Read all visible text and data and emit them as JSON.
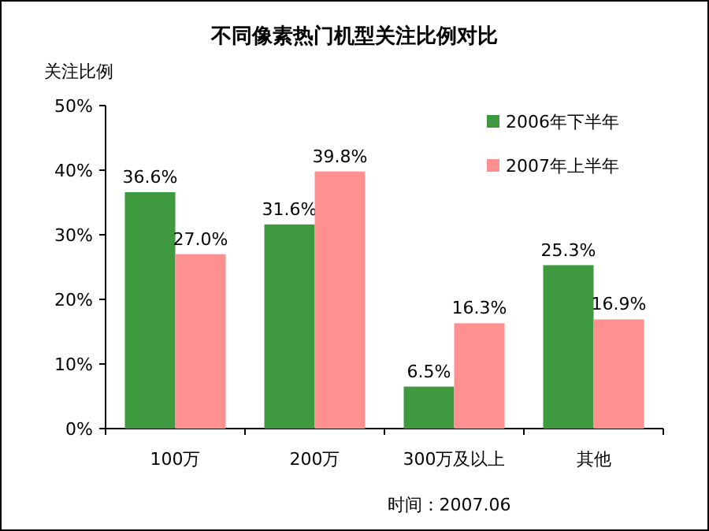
{
  "chart_data": {
    "type": "bar",
    "title": "不同像素热门机型关注比例对比",
    "ylabel": "关注比例",
    "categories": [
      "100万",
      "200万",
      "300万及以上",
      "其他"
    ],
    "series": [
      {
        "name": "2006年下半年",
        "color": "#3f9a3f",
        "values": [
          36.6,
          31.6,
          6.5,
          25.3
        ]
      },
      {
        "name": "2007年上半年",
        "color": "#ff9090",
        "values": [
          27.0,
          39.8,
          16.3,
          16.9
        ]
      }
    ],
    "value_labels": [
      [
        "36.6%",
        "31.6%",
        "6.5%",
        "25.3%"
      ],
      [
        "27.0%",
        "39.8%",
        "16.3%",
        "16.9%"
      ]
    ],
    "ylim": [
      0,
      50
    ],
    "yticks": [
      {
        "value": 0,
        "label": "0%"
      },
      {
        "value": 10,
        "label": "10%"
      },
      {
        "value": 20,
        "label": "20%"
      },
      {
        "value": 30,
        "label": "30%"
      },
      {
        "value": 40,
        "label": "40%"
      },
      {
        "value": 50,
        "label": "50%"
      }
    ],
    "grid": false,
    "legend": "top right",
    "annotations": [
      "时间：2007.06"
    ]
  }
}
